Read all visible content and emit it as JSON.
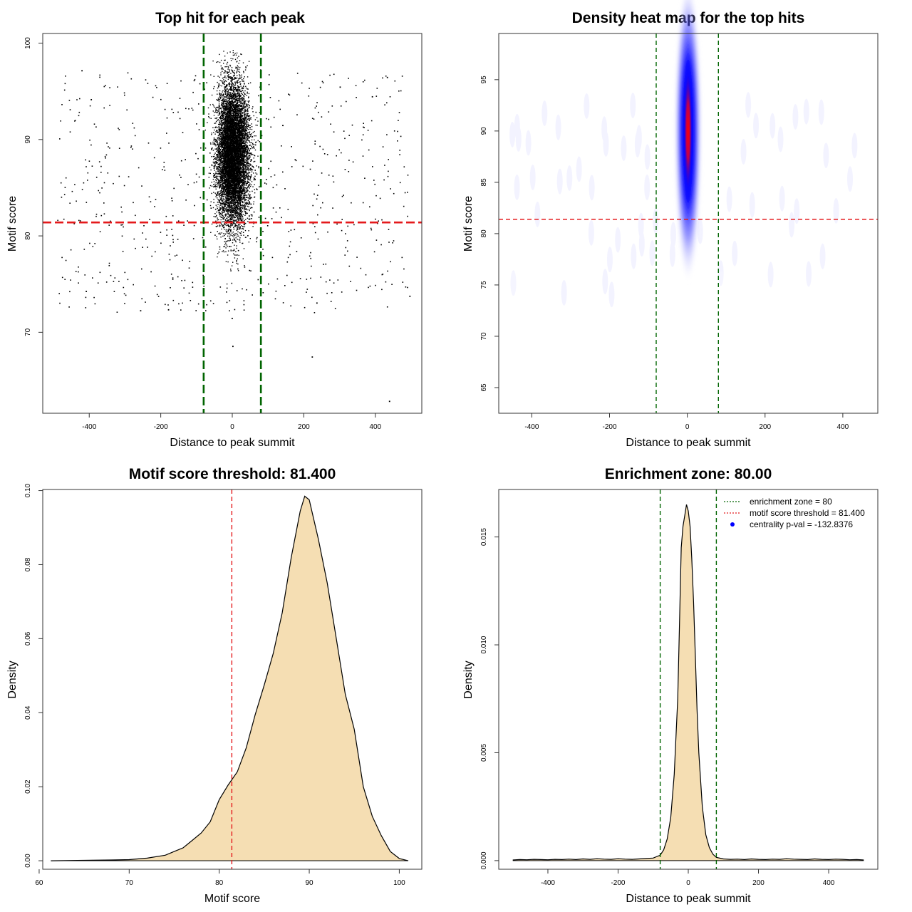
{
  "chart_data": [
    {
      "id": "scatter",
      "type": "scatter",
      "title": "Top hit for each peak",
      "xlabel": "Distance to peak summit",
      "ylabel": "Motif score",
      "xlim": [
        -530,
        530
      ],
      "ylim": [
        61.6,
        101
      ],
      "xticks": [
        -400,
        -200,
        0,
        200,
        400
      ],
      "yticks": [
        70,
        80,
        90,
        100
      ],
      "hlines": [
        {
          "y": 81.4,
          "color": "#e41a1c",
          "dash": true
        }
      ],
      "vlines": [
        {
          "x": -80,
          "color": "#006400",
          "dash": true
        },
        {
          "x": 80,
          "color": "#006400",
          "dash": true
        }
      ],
      "core_cluster": {
        "center_x": 0,
        "sd_x": 22,
        "center_y": 88.5,
        "sd_y": 3.6,
        "y_range": [
          72,
          99.4
        ]
      },
      "background": {
        "x_range": [
          -490,
          490
        ],
        "y_range": [
          72,
          97
        ]
      },
      "outliers": [
        {
          "x": -422,
          "y": 97.2
        },
        {
          "x": 432,
          "y": 96.5
        },
        {
          "x": -396,
          "y": 94.2
        },
        {
          "x": -410,
          "y": 74.3
        },
        {
          "x": -258,
          "y": 72.3
        },
        {
          "x": -180,
          "y": 72.4
        },
        {
          "x": 0,
          "y": 68.6
        },
        {
          "x": 222,
          "y": 67.5
        },
        {
          "x": 438,
          "y": 62.9
        },
        {
          "x": 495,
          "y": 73.8
        },
        {
          "x": 235,
          "y": 73.1
        },
        {
          "x": -2,
          "y": 71.5
        },
        {
          "x": 390,
          "y": 94.5
        },
        {
          "x": 300,
          "y": 95.5
        }
      ],
      "point_color": "#000000"
    },
    {
      "id": "heatmap",
      "type": "heatmap",
      "title": "Density heat map for the top hits",
      "xlabel": "Distance to peak summit",
      "ylabel": "Motif score",
      "xlim": [
        -485,
        490
      ],
      "ylim": [
        62.5,
        99.5
      ],
      "xticks": [
        -400,
        -200,
        0,
        200,
        400
      ],
      "yticks": [
        65,
        70,
        75,
        80,
        85,
        90,
        95
      ],
      "hlines": [
        {
          "y": 81.4,
          "color": "#e41a1c",
          "dash": true
        }
      ],
      "vlines": [
        {
          "x": -80,
          "color": "#006400",
          "dash": true
        },
        {
          "x": 80,
          "color": "#006400",
          "dash": true
        }
      ],
      "hotspot": {
        "center_x": 2,
        "center_y": 90,
        "core_x_extent": 15,
        "core_y_extent": 4,
        "outer_x_extent": 28,
        "outer_y_extent": 10
      },
      "colors": [
        "#ffffff",
        "#0000ff",
        "#ff0000"
      ]
    },
    {
      "id": "score_density",
      "type": "area",
      "title": "Motif score threshold: 81.400",
      "xlabel": "Motif score",
      "ylabel": "Density",
      "xlim": [
        60.4,
        102.5
      ],
      "ylim": [
        -0.0023,
        0.1003
      ],
      "xticks": [
        60,
        70,
        80,
        90,
        100
      ],
      "yticks": [
        0.0,
        0.02,
        0.04,
        0.06,
        0.08,
        0.1
      ],
      "ytick_labels": [
        "0.00",
        "0.02",
        "0.04",
        "0.06",
        "0.08",
        "0.10"
      ],
      "vlines": [
        {
          "x": 81.4,
          "color": "#e41a1c",
          "dash": true
        }
      ],
      "fill_color": "#f5deb3",
      "x": [
        61.3,
        65,
        68,
        70,
        72,
        74,
        75,
        76,
        77,
        78,
        79,
        80,
        81,
        82,
        83,
        84,
        85,
        86,
        87,
        88,
        89,
        89.5,
        90,
        91,
        92,
        93,
        94,
        95,
        96,
        97,
        98,
        99,
        100,
        101
      ],
      "y": [
        0.0,
        0.0001,
        0.0002,
        0.0003,
        0.0007,
        0.0015,
        0.0025,
        0.0035,
        0.0055,
        0.0075,
        0.0105,
        0.0165,
        0.0205,
        0.024,
        0.0305,
        0.0395,
        0.0475,
        0.056,
        0.067,
        0.082,
        0.0945,
        0.0985,
        0.0975,
        0.087,
        0.075,
        0.06,
        0.045,
        0.0355,
        0.02,
        0.012,
        0.0068,
        0.0025,
        0.0006,
        0.0
      ]
    },
    {
      "id": "distance_density",
      "type": "area",
      "title": "Enrichment zone: 80.00",
      "xlabel": "Distance to peak summit",
      "ylabel": "Density",
      "xlim": [
        -540,
        540
      ],
      "ylim": [
        -0.0004,
        0.0172
      ],
      "xticks": [
        -400,
        -200,
        0,
        200,
        400
      ],
      "yticks": [
        0.0,
        0.005,
        0.01,
        0.015
      ],
      "ytick_labels": [
        "0.000",
        "0.005",
        "0.010",
        "0.015"
      ],
      "vlines": [
        {
          "x": -80,
          "color": "#006400",
          "dash": true
        },
        {
          "x": 80,
          "color": "#006400",
          "dash": true
        }
      ],
      "fill_color": "#f5deb3",
      "x": [
        -500,
        -480,
        -460,
        -440,
        -420,
        -400,
        -380,
        -360,
        -340,
        -320,
        -300,
        -280,
        -260,
        -240,
        -220,
        -200,
        -180,
        -160,
        -140,
        -120,
        -100,
        -80,
        -70,
        -60,
        -50,
        -40,
        -30,
        -25,
        -20,
        -15,
        -10,
        -5,
        0,
        5,
        10,
        15,
        20,
        25,
        30,
        40,
        50,
        60,
        70,
        80,
        100,
        120,
        140,
        160,
        180,
        200,
        220,
        240,
        260,
        280,
        300,
        320,
        340,
        360,
        380,
        400,
        420,
        440,
        460,
        480,
        500
      ],
      "y": [
        3e-05,
        5e-05,
        4e-05,
        6e-05,
        5e-05,
        4e-05,
        6e-05,
        5e-05,
        7e-05,
        5e-05,
        8e-05,
        6e-05,
        9e-05,
        7e-05,
        6e-05,
        9e-05,
        7e-05,
        6e-05,
        8e-05,
        0.0001,
        0.00012,
        0.00025,
        0.0005,
        0.001,
        0.002,
        0.004,
        0.0075,
        0.011,
        0.0145,
        0.0155,
        0.016,
        0.0165,
        0.0162,
        0.0155,
        0.014,
        0.012,
        0.0095,
        0.007,
        0.005,
        0.0025,
        0.0012,
        0.0006,
        0.0003,
        0.00015,
        8e-05,
        6e-05,
        7e-05,
        5e-05,
        8e-05,
        6e-05,
        5e-05,
        7e-05,
        6e-05,
        9e-05,
        7e-05,
        6e-05,
        5e-05,
        8e-05,
        6e-05,
        5e-05,
        7e-05,
        6e-05,
        4e-05,
        5e-05,
        3e-05
      ],
      "legend": {
        "position": "top-right",
        "entries": [
          {
            "label": "enrichment zone = 80",
            "color": "#006400",
            "symbol": "dotted-line"
          },
          {
            "label": "motif score threshold = 81.400",
            "color": "#e41a1c",
            "symbol": "dotted-line"
          },
          {
            "label": "centrality p-val = -132.8376",
            "color": "#0000ff",
            "symbol": "point"
          }
        ]
      }
    }
  ]
}
